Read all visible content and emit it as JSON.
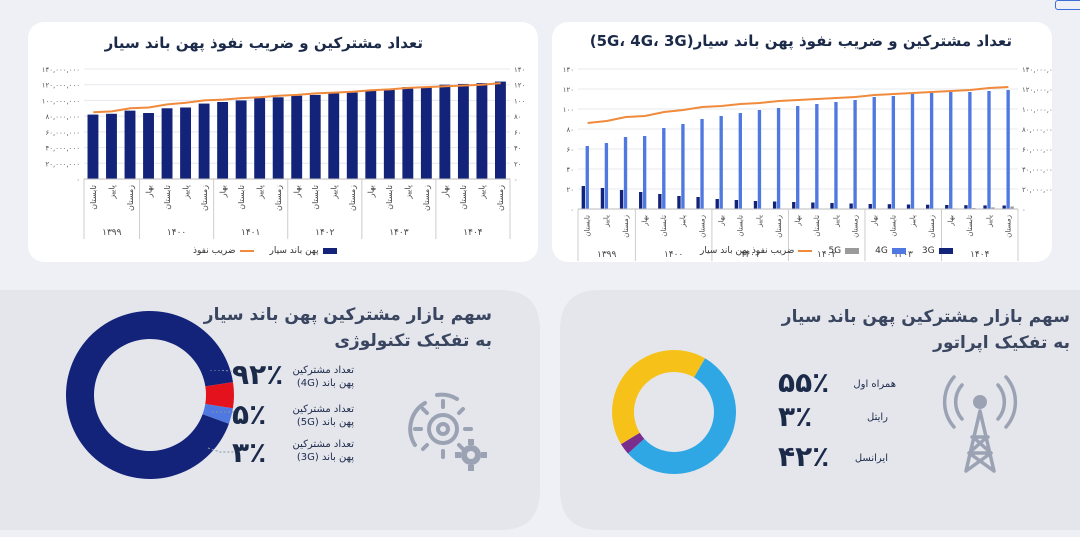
{
  "chart_data": [
    {
      "type": "bar",
      "title": "تعداد مشترکین و ضریب نفوذ پهن باند سیار",
      "y_ticks_left": [
        "۱۴۰,۰۰۰,۰۰۰",
        "۱۲۰,۰۰۰,۰۰۰",
        "۱۰۰,۰۰۰,۰۰۰",
        "۸۰,۰۰۰,۰۰۰",
        "۶۰,۰۰۰,۰۰۰",
        "۴۰,۰۰۰,۰۰۰",
        "۲۰,۰۰۰,۰۰۰",
        "۰"
      ],
      "y_ticks_right": [
        "۱۴۰",
        "۱۲۰",
        "۱۰۰",
        "۸۰",
        "۶۰",
        "۴۰",
        "۲۰",
        "۰"
      ],
      "ylim": [
        0,
        140000000
      ],
      "y2lim": [
        0,
        140
      ],
      "categories": [
        "تابستان",
        "پاییز",
        "زمستان",
        "بهار",
        "تابستان",
        "پاییز",
        "زمستان",
        "بهار",
        "تابستان",
        "پاییز",
        "زمستان",
        "بهار",
        "تابستان",
        "پاییز",
        "زمستان",
        "بهار",
        "تابستان",
        "پاییز",
        "زمستان",
        "بهار",
        "تابستان",
        "پاییز",
        "زمستان"
      ],
      "year_groups": [
        {
          "label": "۱۳۹۹",
          "count": 3
        },
        {
          "label": "۱۴۰۰",
          "count": 4
        },
        {
          "label": "۱۴۰۱",
          "count": 4
        },
        {
          "label": "۱۴۰۲",
          "count": 4
        },
        {
          "label": "۱۴۰۳",
          "count": 4
        },
        {
          "label": "۱۴۰۴",
          "count": 4
        }
      ],
      "series": [
        {
          "name": "پهن باند سیار",
          "kind": "bar",
          "color": "#13237a",
          "values": [
            82000000,
            83000000,
            87000000,
            84000000,
            90000000,
            91000000,
            96000000,
            98000000,
            100000000,
            103000000,
            104000000,
            106000000,
            107000000,
            109000000,
            110000000,
            113000000,
            114000000,
            117000000,
            117000000,
            120000000,
            121000000,
            122000000,
            124000000
          ]
        },
        {
          "name": "ضریب نفوذ",
          "kind": "line",
          "color": "#f08a3c",
          "values": [
            85,
            86,
            90,
            91,
            95,
            97,
            100,
            101,
            103,
            104,
            106,
            107,
            109,
            110,
            111,
            113,
            114,
            116,
            117,
            118,
            119,
            120,
            122
          ]
        }
      ]
    },
    {
      "type": "bar",
      "title": "تعداد مشترکین و ضریب نفوذ پهن باند سیار (5G، 4G، 3G)",
      "title_text": "تعداد مشترکین و ضریب نفوذ پهن باند سیار",
      "title_paren": "(5G، 4G، 3G)",
      "y_ticks_left": [
        "۱۴۰",
        "۱۲۰",
        "۱۰۰",
        "۸۰",
        "۶۰",
        "۴۰",
        "۲۰",
        "۰"
      ],
      "y_ticks_right": [
        "۱۴۰,۰۰۰,۰۰۰",
        "۱۲۰,۰۰۰,۰۰۰",
        "۱۰۰,۰۰۰,۰۰۰",
        "۸۰,۰۰۰,۰۰۰",
        "۶۰,۰۰۰,۰۰۰",
        "۴۰,۰۰۰,۰۰۰",
        "۲۰,۰۰۰,۰۰۰",
        "۰"
      ],
      "ylim": [
        0,
        140
      ],
      "y2lim": [
        0,
        140000000
      ],
      "categories": [
        "تابستان",
        "پاییز",
        "زمستان",
        "بهار",
        "تابستان",
        "پاییز",
        "زمستان",
        "بهار",
        "تابستان",
        "پاییز",
        "زمستان",
        "بهار",
        "تابستان",
        "پاییز",
        "زمستان",
        "بهار",
        "تابستان",
        "پاییز",
        "زمستان",
        "بهار",
        "تابستان",
        "پاییز",
        "زمستان"
      ],
      "year_groups": [
        {
          "label": "۱۳۹۹",
          "count": 3
        },
        {
          "label": "۱۴۰۰",
          "count": 4
        },
        {
          "label": "۱۴۰۱",
          "count": 4
        },
        {
          "label": "۱۴۰۲",
          "count": 4
        },
        {
          "label": "۱۴۰۳",
          "count": 4
        },
        {
          "label": "۱۴۰۴",
          "count": 4
        }
      ],
      "series": [
        {
          "name": "3G",
          "kind": "bar",
          "color": "#13237a",
          "values": [
            23000000,
            21000000,
            19000000,
            17000000,
            15000000,
            13000000,
            12000000,
            10000000,
            9000000,
            8000000,
            7500000,
            7000000,
            6500000,
            6000000,
            5500000,
            5000000,
            4800000,
            4500000,
            4300000,
            4000000,
            3800000,
            3600000,
            3500000
          ]
        },
        {
          "name": "4G",
          "kind": "bar",
          "color": "#4f79e0",
          "values": [
            63000000,
            66000000,
            72000000,
            73000000,
            81000000,
            85000000,
            90000000,
            93000000,
            96000000,
            99000000,
            101000000,
            103000000,
            105000000,
            107000000,
            109000000,
            112000000,
            113000000,
            115000000,
            116000000,
            117000000,
            117000000,
            118000000,
            119000000
          ]
        },
        {
          "name": "5G",
          "kind": "bar",
          "color": "#9a9a9a",
          "values": [
            0,
            0,
            0,
            0,
            0,
            0,
            0,
            0,
            0,
            0,
            0,
            0,
            0,
            0,
            0,
            0,
            0,
            100000,
            300000,
            600000,
            1000000,
            1600000,
            2500000
          ]
        },
        {
          "name": "ضریب نفوذ پهن باند سیار",
          "kind": "line",
          "color": "#f08a3c",
          "values": [
            86,
            88,
            92,
            93,
            97,
            99,
            102,
            103,
            105,
            106,
            108,
            109,
            110,
            111,
            112,
            114,
            115,
            116,
            117,
            118,
            119,
            121,
            122
          ]
        }
      ]
    },
    {
      "type": "pie",
      "title_line1": "سهم بازار مشترکین پهن باند سیار",
      "title_line2": "به تفکیک تکنولوژی",
      "slices": [
        {
          "label_line1": "تعداد مشترکین",
          "label_line2": "پهن باند (4G)",
          "pct_text": "۹۲٪",
          "value": 92,
          "color": "#13237a"
        },
        {
          "label_line1": "تعداد مشترکین",
          "label_line2": "پهن باند (5G)",
          "pct_text": "۵٪",
          "value": 5,
          "color": "#e3121c"
        },
        {
          "label_line1": "تعداد مشترکین",
          "label_line2": "پهن باند (3G)",
          "pct_text": "۳٪",
          "value": 3,
          "color": "#4f79e0"
        }
      ]
    },
    {
      "type": "pie",
      "title_line1": "سهم بازار مشترکین پهن باند سیار",
      "title_line2": "به تفکیک اپراتور",
      "slices": [
        {
          "label": "همراه اول",
          "pct_text": "۵۵٪",
          "value": 55,
          "color": "#2fa7e4"
        },
        {
          "label": "رایتل",
          "pct_text": "۳٪",
          "value": 3,
          "color": "#7b2d8e"
        },
        {
          "label": "ایرانسل",
          "pct_text": "۴۲٪",
          "value": 42,
          "color": "#f6c21a"
        }
      ]
    }
  ],
  "icons": {
    "gear": "gear-icon",
    "tower": "antenna-tower-icon"
  }
}
